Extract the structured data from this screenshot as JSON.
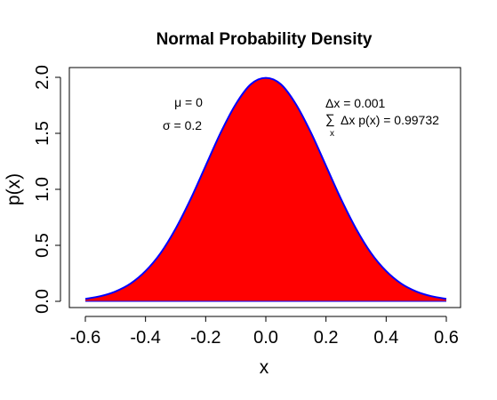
{
  "chart_data": {
    "type": "area",
    "title": "Normal Probability Density",
    "xlabel": "x",
    "ylabel": "p(x)",
    "xlim": [
      -0.6,
      0.6
    ],
    "ylim": [
      0.0,
      2.0
    ],
    "x_ticks": [
      -0.6,
      -0.4,
      -0.2,
      0.0,
      0.2,
      0.4,
      0.6
    ],
    "x_tick_labels": [
      "-0.6",
      "-0.4",
      "-0.2",
      "0.0",
      "0.2",
      "0.4",
      "0.6"
    ],
    "y_ticks": [
      0.0,
      0.5,
      1.0,
      1.5,
      2.0
    ],
    "y_tick_labels": [
      "0.0",
      "0.5",
      "1.0",
      "1.5",
      "2.0"
    ],
    "grid": false,
    "fill_color": "#ff0000",
    "line_color": "#0000ff",
    "series": [
      {
        "x": [
          -0.6,
          -0.55,
          -0.5,
          -0.45,
          -0.4,
          -0.35,
          -0.3,
          -0.25,
          -0.2,
          -0.15,
          -0.1,
          -0.05,
          0.0,
          0.05,
          0.1,
          0.15,
          0.2,
          0.25,
          0.3,
          0.35,
          0.4,
          0.45,
          0.5,
          0.55,
          0.6
        ],
        "values": [
          0.022,
          0.046,
          0.088,
          0.158,
          0.27,
          0.43,
          0.648,
          0.913,
          1.21,
          1.506,
          1.76,
          1.938,
          1.995,
          1.938,
          1.76,
          1.506,
          1.21,
          0.913,
          0.648,
          0.43,
          0.27,
          0.158,
          0.088,
          0.046,
          0.022
        ]
      }
    ],
    "annotations": {
      "mu": "μ = 0",
      "sigma": "σ = 0.2",
      "dx": "Δx = 0.001",
      "sum_symbol": "∑",
      "sum_sub": "x",
      "sum_text": "Δx p(x) = 0.99732"
    }
  }
}
